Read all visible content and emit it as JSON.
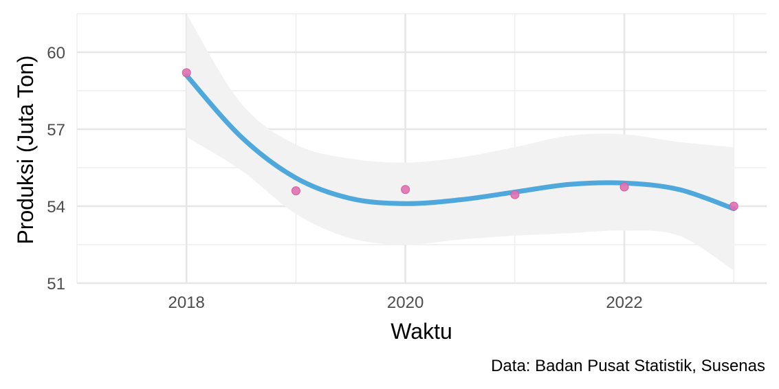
{
  "chart_data": {
    "type": "scatter",
    "xlabel": "Waktu",
    "ylabel": "Produksi (Juta Ton)",
    "caption": "Data: Badan Pusat Statistik, Susenas",
    "xlim": [
      2017,
      2023.3
    ],
    "ylim": [
      51,
      61.5
    ],
    "x_ticks": [
      2018,
      2020,
      2022
    ],
    "y_ticks": [
      51,
      54,
      57,
      60
    ],
    "x_minor": [
      2017,
      2019,
      2021,
      2023
    ],
    "y_minor": [
      52.5,
      55.5,
      58.5,
      61.5
    ],
    "grid": true,
    "points": {
      "x": [
        2018,
        2019,
        2020,
        2021,
        2022,
        2023
      ],
      "y": [
        59.2,
        54.6,
        54.65,
        54.45,
        54.75,
        54.0
      ],
      "color": "#e070b0"
    },
    "smooth": {
      "color": "#4fa8dc",
      "x": [
        2018,
        2018.5,
        2019,
        2019.5,
        2020,
        2020.5,
        2021,
        2021.5,
        2022,
        2022.5,
        2023
      ],
      "y": [
        59.1,
        56.7,
        55.1,
        54.3,
        54.1,
        54.25,
        54.55,
        54.85,
        54.9,
        54.65,
        53.9
      ],
      "ci_upper": [
        61.5,
        58.0,
        56.4,
        55.85,
        55.7,
        55.9,
        56.3,
        56.75,
        56.8,
        56.5,
        56.3
      ],
      "ci_lower": [
        56.7,
        55.4,
        53.7,
        52.75,
        52.5,
        52.7,
        52.85,
        52.95,
        53.05,
        52.85,
        51.5
      ],
      "ci_color": "#f2f2f2"
    }
  }
}
